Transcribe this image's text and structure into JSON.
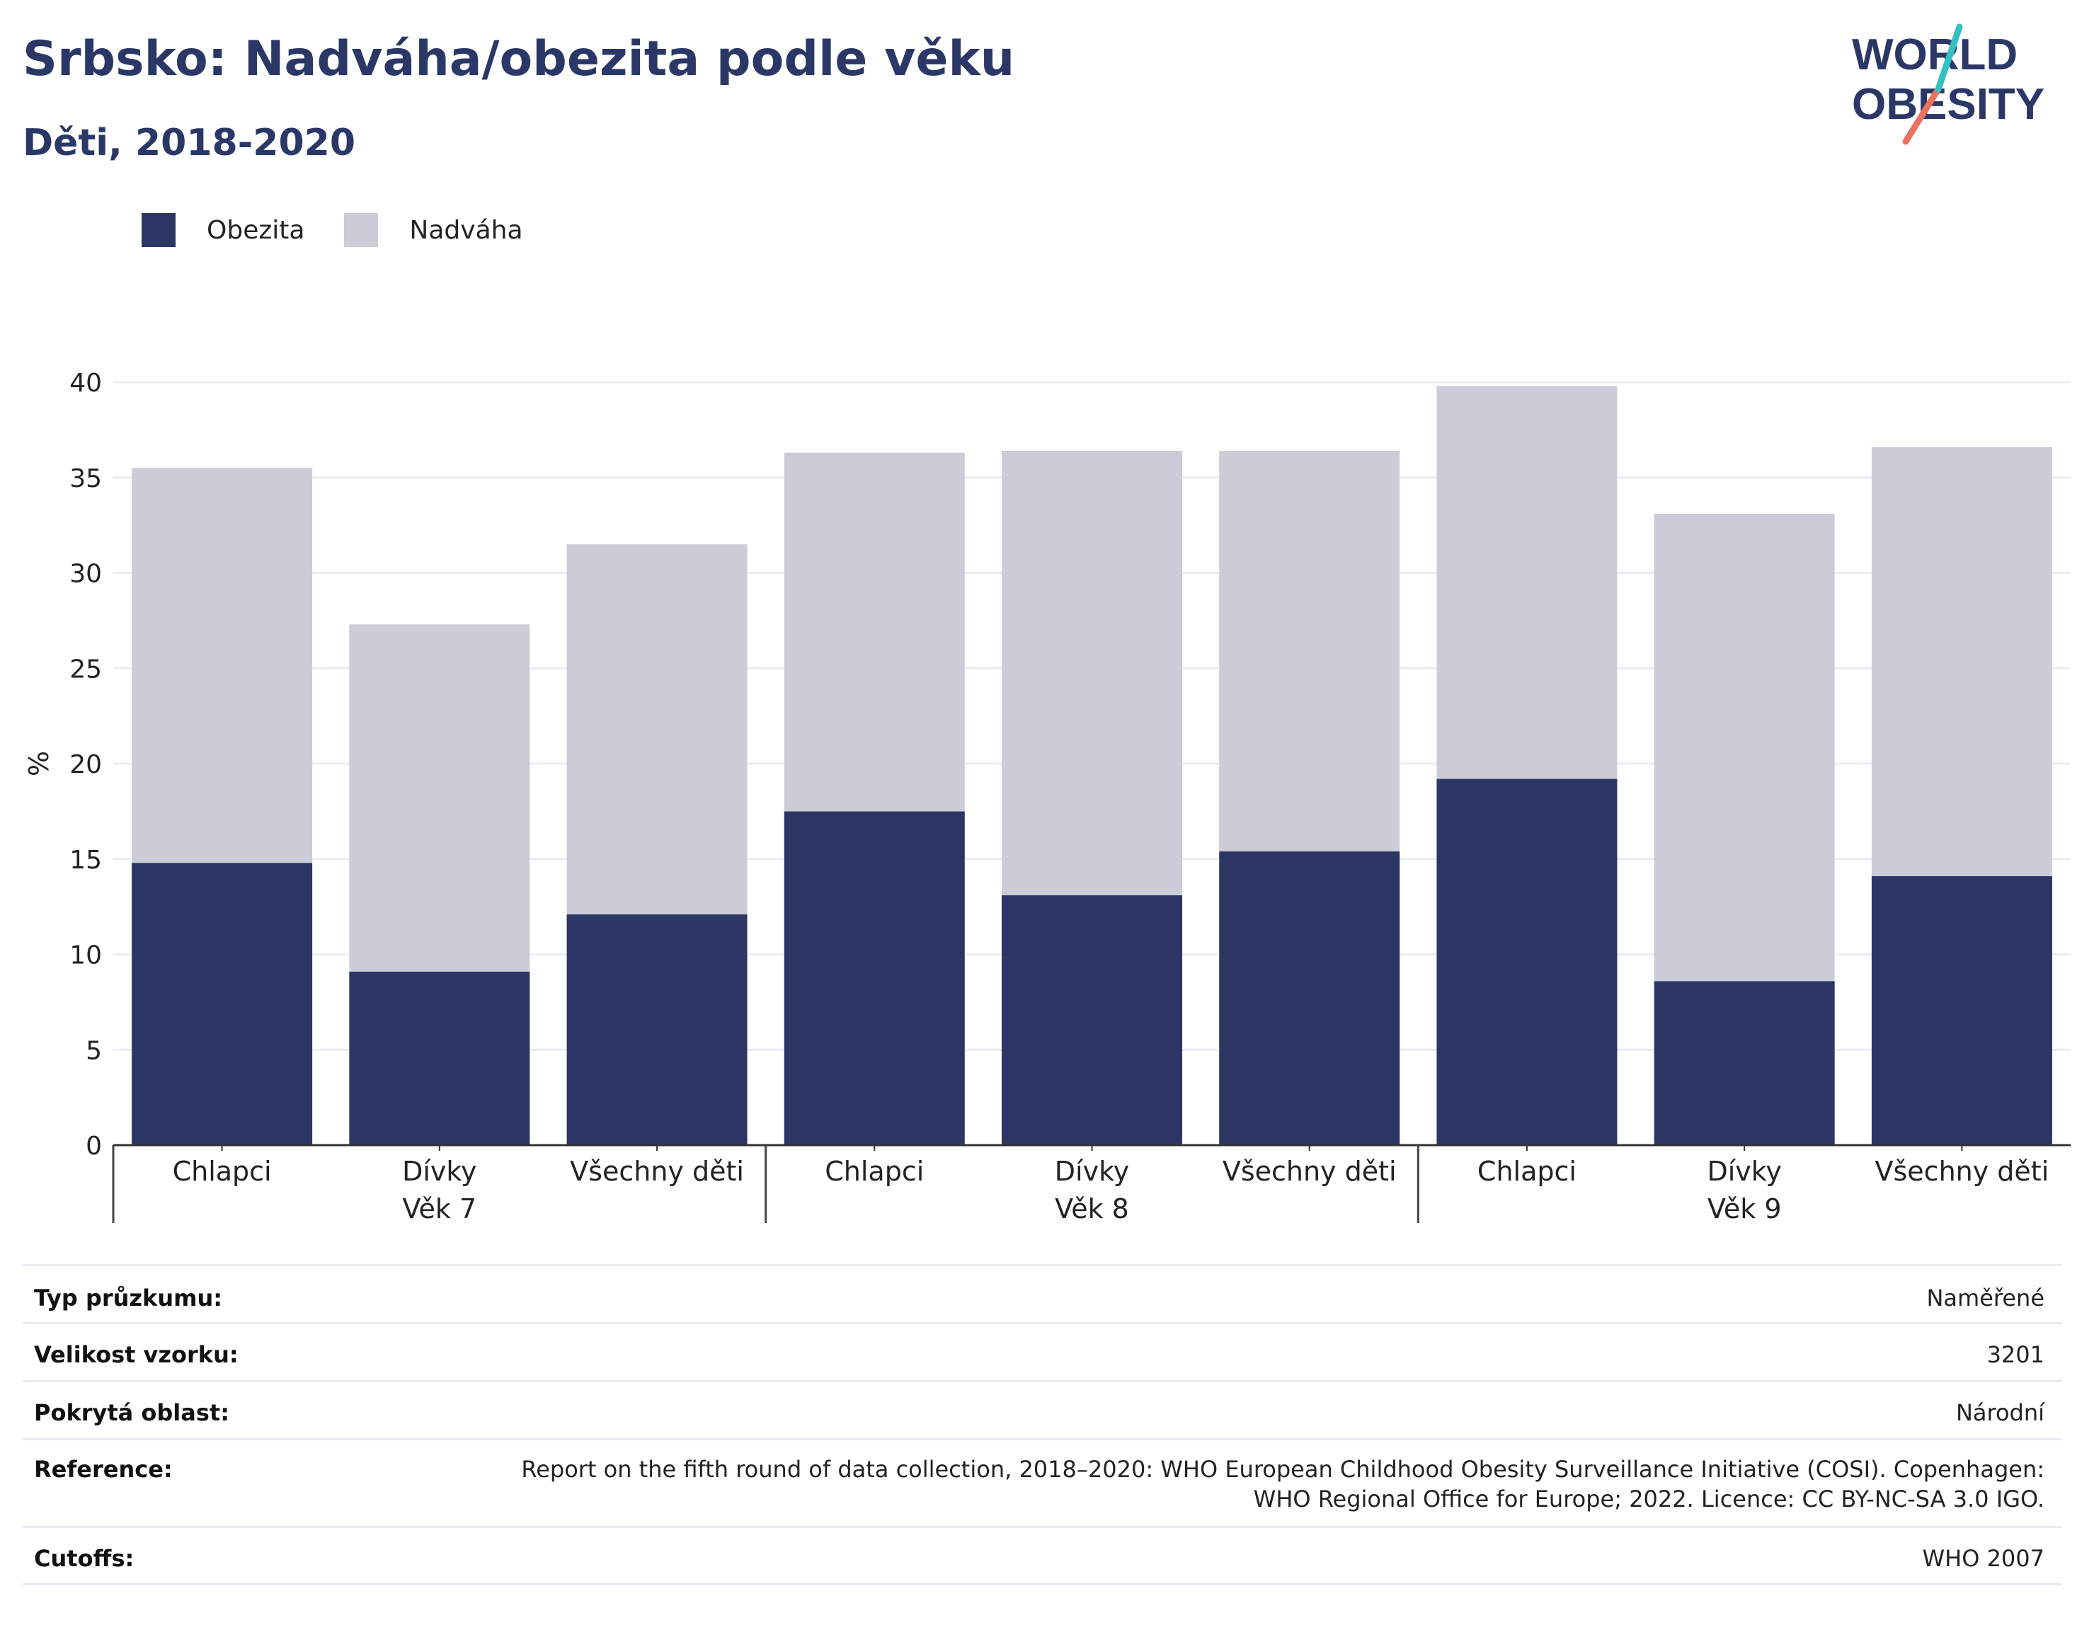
{
  "title": "Srbsko: Nadváha/obezita podle věku",
  "subtitle": "Děti, 2018-2020",
  "logo": {
    "line1": "WORLD",
    "line2": "OBESITY"
  },
  "colors": {
    "obezita": "#2b3664",
    "nadvaha": "#cbccd8",
    "title": "#2b3766",
    "logo_teal": "#33bfc4",
    "logo_coral": "#e8735f"
  },
  "legend": [
    {
      "label": "Obezita",
      "color": "#2b3664"
    },
    {
      "label": "Nadváha",
      "color": "#cbccd8"
    }
  ],
  "chart_data": {
    "type": "bar",
    "stacked": true,
    "ylabel": "%",
    "ylim": [
      0,
      40
    ],
    "yticks": [
      0,
      5,
      10,
      15,
      20,
      25,
      30,
      35,
      40
    ],
    "grid": true,
    "legend_position": "top-left",
    "categories": [
      "Chlapci",
      "Dívky",
      "Všechny děti",
      "Chlapci",
      "Dívky",
      "Všechny děti",
      "Chlapci",
      "Dívky",
      "Všechny děti"
    ],
    "groups": [
      {
        "label": "Věk 7",
        "categories": 3
      },
      {
        "label": "Věk 8",
        "categories": 3
      },
      {
        "label": "Věk 9",
        "categories": 3
      }
    ],
    "series": [
      {
        "name": "Obezita",
        "values": [
          14.8,
          9.1,
          12.1,
          17.5,
          13.1,
          15.4,
          19.2,
          8.6,
          14.1
        ]
      },
      {
        "name": "Nadváha",
        "values": [
          20.7,
          18.2,
          19.4,
          18.8,
          23.3,
          21.0,
          20.6,
          24.5,
          22.5
        ]
      }
    ]
  },
  "info": [
    {
      "label": "Typ průzkumu:",
      "value": "Naměřené"
    },
    {
      "label": "Velikost vzorku:",
      "value": "3201"
    },
    {
      "label": "Pokrytá oblast:",
      "value": "Národní"
    },
    {
      "label": "Reference:",
      "value": "Report on the fifth round of data collection, 2018–2020: WHO European Childhood Obesity Surveillance Initiative (COSI). Copenhagen: WHO Regional Office for Europe; 2022. Licence: CC BY-NC-SA 3.0 IGO."
    },
    {
      "label": "Cutoffs:",
      "value": "WHO 2007"
    }
  ]
}
